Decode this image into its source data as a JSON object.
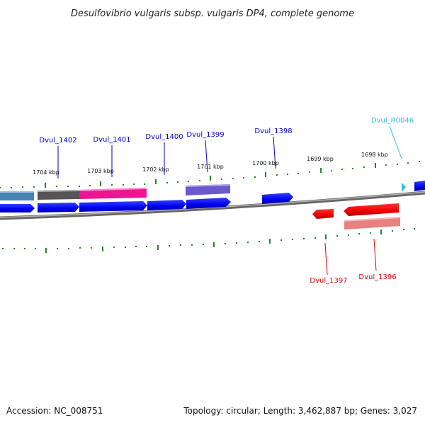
{
  "title": "Desulfovibrio vulgaris subsp. vulgaris DP4, complete genome",
  "footer": {
    "accession": "Accession: NC_008751",
    "summary": "Topology: circular; Length: 3,462,887 bp; Genes: 3,027"
  },
  "ruler_labels": [
    "1704 kbp",
    "1703 kbp",
    "1702 kbp",
    "1701 kbp",
    "1700 kbp",
    "1699 kbp",
    "1698 kbp"
  ],
  "gene_labels": [
    {
      "text": "Dvul_1402",
      "strand": "forward",
      "color": "#0000cc"
    },
    {
      "text": "Dvul_1401",
      "strand": "forward",
      "color": "#0000cc"
    },
    {
      "text": "Dvul_1400",
      "strand": "forward",
      "color": "#0000cc"
    },
    {
      "text": "Dvul_1399",
      "strand": "forward",
      "color": "#0000cc"
    },
    {
      "text": "Dvul_1398",
      "strand": "forward",
      "color": "#0000cc"
    },
    {
      "text": "Dvul_R0046",
      "strand": "forward",
      "color": "#33bbdd"
    },
    {
      "text": "Dvul_1397",
      "strand": "reverse",
      "color": "#dd0000"
    },
    {
      "text": "Dvul_1396",
      "strand": "reverse",
      "color": "#dd0000"
    }
  ],
  "colors": {
    "forward_cds": "#0000ee",
    "reverse_cds": "#ee0000",
    "backbone": "#888888",
    "ticks": "#228822",
    "cog_steelblue": "#4682b4",
    "cog_gray": "#555555",
    "cog_pink": "#ee1493",
    "cog_purple": "#6a5acd",
    "cog_salmon": "#e88080",
    "trna": "#33bbdd"
  }
}
